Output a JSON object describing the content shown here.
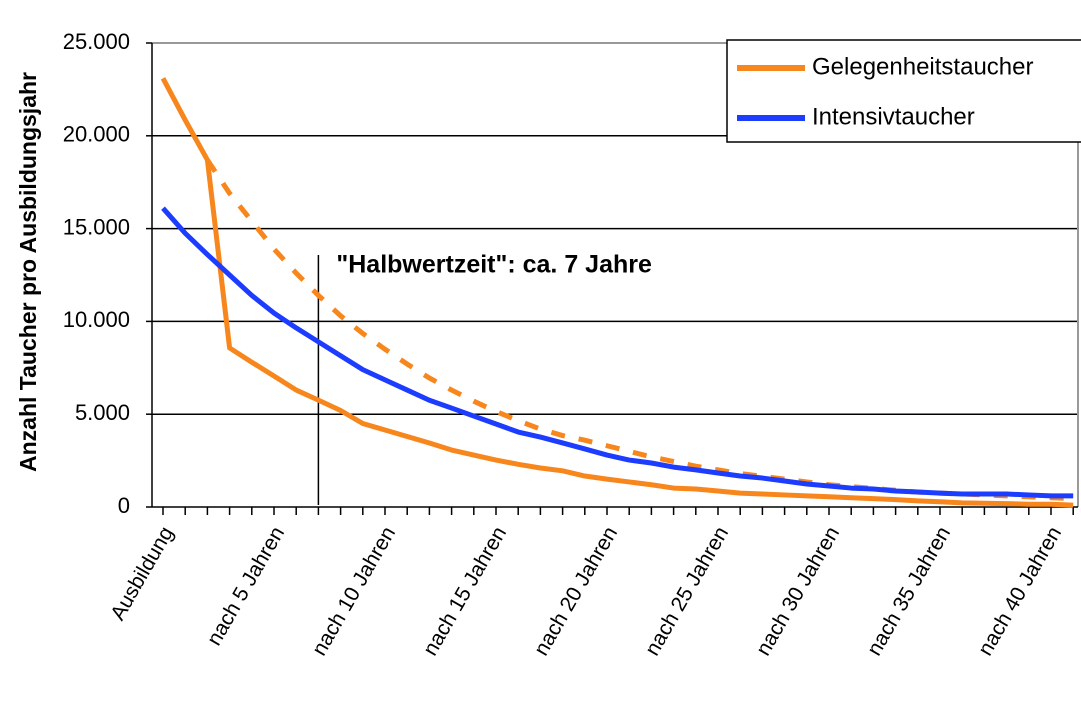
{
  "chart_data": {
    "type": "line",
    "y_axis_label": "Anzahl Taucher pro Ausbildungsjahr",
    "annotation": {
      "text": "\"Halbwertzeit\": ca. 7 Jahre",
      "x": 7
    },
    "categories": [
      "Ausbildung",
      null,
      null,
      null,
      null,
      "nach 5 Jahren",
      null,
      null,
      null,
      null,
      "nach 10 Jahren",
      null,
      null,
      null,
      null,
      "nach 15 Jahren",
      null,
      null,
      null,
      null,
      "nach 20 Jahren",
      null,
      null,
      null,
      null,
      "nach 25 Jahren",
      null,
      null,
      null,
      null,
      "nach 30 Jahren",
      null,
      null,
      null,
      null,
      "nach 35 Jahren",
      null,
      null,
      null,
      null,
      "nach 40 Jahren",
      null
    ],
    "series": [
      {
        "name": "Gelegenheitstaucher",
        "color": "#f7861c",
        "dashed": false,
        "values": [
          23100,
          20850,
          18700,
          8570,
          7800,
          7060,
          6300,
          5760,
          5200,
          4500,
          4150,
          3800,
          3450,
          3070,
          2800,
          2530,
          2300,
          2100,
          1950,
          1670,
          1500,
          1350,
          1200,
          1020,
          970,
          860,
          750,
          700,
          650,
          600,
          550,
          500,
          450,
          400,
          330,
          280,
          220,
          200,
          180,
          150,
          150,
          100
        ]
      },
      {
        "name": "Intensivtaucher",
        "color": "#1c3cff",
        "dashed": false,
        "values": [
          16100,
          14750,
          13600,
          12500,
          11400,
          10450,
          9650,
          8900,
          8150,
          7400,
          6850,
          6300,
          5750,
          5330,
          4900,
          4470,
          4040,
          3770,
          3450,
          3130,
          2800,
          2530,
          2370,
          2150,
          2000,
          1830,
          1670,
          1560,
          1400,
          1240,
          1130,
          1020,
          970,
          860,
          810,
          750,
          700,
          700,
          700,
          650,
          600,
          600
        ]
      },
      {
        "color": "#f7861c",
        "dashed": true,
        "values": [
          null,
          null,
          18700,
          16900,
          15400,
          13900,
          12600,
          11400,
          10300,
          9350,
          8500,
          7700,
          6950,
          6300,
          5700,
          5150,
          4650,
          4200,
          3850,
          3600,
          3300,
          3000,
          2700,
          2450,
          2200,
          2000,
          1800,
          1650,
          1500,
          1350,
          1200,
          1100,
          1000,
          900,
          800,
          750,
          700,
          650,
          600,
          550,
          500,
          450
        ]
      }
    ],
    "ylim": [
      0,
      25000
    ],
    "yticks": [
      0,
      {
        "value": 5000,
        "label": "5.000"
      },
      {
        "value": 10000,
        "label": "10.000"
      },
      {
        "value": 15000,
        "label": "15.000"
      },
      {
        "value": 20000,
        "label": "20.000"
      },
      {
        "value": 25000,
        "label": "25.000"
      }
    ],
    "grid": true,
    "legend": "top-right"
  }
}
